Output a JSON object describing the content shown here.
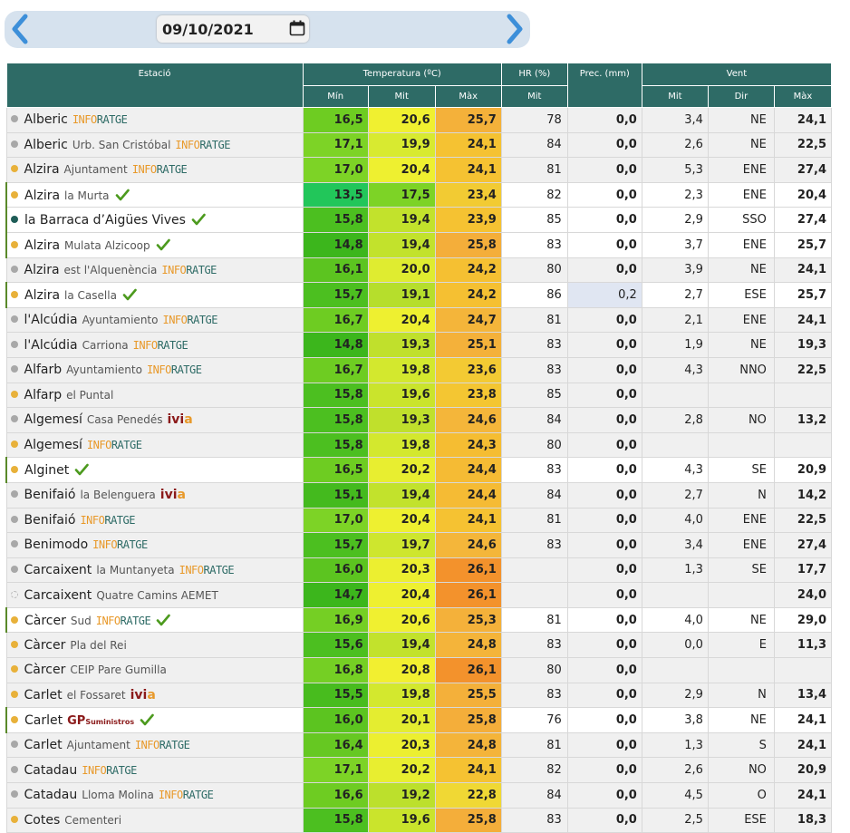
{
  "date": "09/10/2021",
  "icons": {
    "prev": "chevron-left-icon",
    "next": "chevron-right-icon",
    "calendar": "calendar-icon",
    "check": "checkmark-icon"
  },
  "headers": {
    "estacio": "Estació",
    "temperatura": "Temperatura (ºC)",
    "hr": "HR (%)",
    "prec": "Prec. (mm)",
    "vent": "Vent",
    "min": "Mín",
    "mit": "Mit",
    "max": "Màx",
    "hr_mit": "Mit",
    "vent_mit": "Mit",
    "vent_dir": "Dir",
    "vent_max": "Màx"
  },
  "colors": {
    "header_bg": "#2e6b66",
    "dot_orange": "#e8b13a",
    "dot_gray": "#a8a8a8",
    "dot_teal": "#1f5d57",
    "check_green": "#4c9a1e"
  },
  "rows": [
    {
      "name": "Alberic",
      "sub": "",
      "logo": "inforatge",
      "check": false,
      "dot": "gray",
      "hl": false,
      "min": "16,5",
      "mit": "20,6",
      "max": "25,7",
      "hr": "78",
      "prec": "0,0",
      "vmit": "3,4",
      "vdir": "NE",
      "vmax": "24,1",
      "cmin": "#6ecc22",
      "cmit": "#f0f030",
      "cmax": "#f4b13a"
    },
    {
      "name": "Alberic",
      "sub": "Urb. San Cristóbal",
      "logo": "inforatge",
      "check": false,
      "dot": "gray",
      "hl": false,
      "min": "17,1",
      "mit": "19,9",
      "max": "24,1",
      "hr": "84",
      "prec": "0,0",
      "vmit": "2,6",
      "vdir": "NE",
      "vmax": "22,5",
      "cmin": "#7dd326",
      "cmit": "#d8ea30",
      "cmax": "#f5c232"
    },
    {
      "name": "Alzira",
      "sub": "Ajuntament",
      "logo": "inforatge",
      "check": false,
      "dot": "orange",
      "hl": false,
      "min": "17,0",
      "mit": "20,4",
      "max": "24,1",
      "hr": "81",
      "prec": "0,0",
      "vmit": "5,3",
      "vdir": "ENE",
      "vmax": "27,4",
      "cmin": "#7dd326",
      "cmit": "#eef030",
      "cmax": "#f5c232"
    },
    {
      "name": "Alzira",
      "sub": "la Murta",
      "logo": "",
      "check": true,
      "dot": "orange",
      "hl": true,
      "min": "13,5",
      "mit": "17,5",
      "max": "23,4",
      "hr": "82",
      "prec": "0,0",
      "vmit": "2,3",
      "vdir": "ENE",
      "vmax": "20,4",
      "cmin": "#22c65a",
      "cmit": "#7dd326",
      "cmax": "#f2cb33"
    },
    {
      "name": "la Barraca d’Aigües Vives",
      "sub": "",
      "logo": "",
      "check": true,
      "dot": "teal",
      "hl": true,
      "min": "15,8",
      "mit": "19,4",
      "max": "23,9",
      "hr": "85",
      "prec": "0,0",
      "vmit": "2,9",
      "vdir": "SSO",
      "vmax": "27,4",
      "cmin": "#4cbf20",
      "cmit": "#c2e22c",
      "cmax": "#f5c232"
    },
    {
      "name": "Alzira",
      "sub": "Mulata Alzicoop",
      "logo": "",
      "check": true,
      "dot": "orange",
      "hl": true,
      "min": "14,8",
      "mit": "19,4",
      "max": "25,8",
      "hr": "83",
      "prec": "0,0",
      "vmit": "3,7",
      "vdir": "ENE",
      "vmax": "25,7",
      "cmin": "#3cb61c",
      "cmit": "#c2e22c",
      "cmax": "#f4ae3a"
    },
    {
      "name": "Alzira",
      "sub": "est l'Alquenència",
      "logo": "inforatge",
      "check": false,
      "dot": "gray",
      "hl": false,
      "min": "16,1",
      "mit": "20,0",
      "max": "24,2",
      "hr": "80",
      "prec": "0,0",
      "vmit": "3,9",
      "vdir": "NE",
      "vmax": "24,1",
      "cmin": "#5cc420",
      "cmit": "#dfec30",
      "cmax": "#f5c032"
    },
    {
      "name": "Alzira",
      "sub": "la Casella",
      "logo": "",
      "check": true,
      "dot": "orange",
      "hl": true,
      "min": "15,7",
      "mit": "19,1",
      "max": "24,2",
      "hr": "86",
      "prec": "0,2",
      "vmit": "2,7",
      "vdir": "ESE",
      "vmax": "25,7",
      "cmin": "#4cbf20",
      "cmit": "#b6de2c",
      "cmax": "#f5c032"
    },
    {
      "name": "l'Alcúdia",
      "sub": "Ayuntamiento",
      "logo": "inforatge",
      "check": false,
      "dot": "gray",
      "hl": false,
      "min": "16,7",
      "mit": "20,4",
      "max": "24,7",
      "hr": "81",
      "prec": "0,0",
      "vmit": "2,1",
      "vdir": "ENE",
      "vmax": "24,1",
      "cmin": "#6ecc22",
      "cmit": "#eef030",
      "cmax": "#f4b53a"
    },
    {
      "name": "l'Alcúdia",
      "sub": "Carriona",
      "logo": "inforatge",
      "check": false,
      "dot": "gray",
      "hl": false,
      "min": "14,8",
      "mit": "19,3",
      "max": "25,1",
      "hr": "83",
      "prec": "0,0",
      "vmit": "1,9",
      "vdir": "NE",
      "vmax": "19,3",
      "cmin": "#3cb61c",
      "cmit": "#c0e02c",
      "cmax": "#f4b13a"
    },
    {
      "name": "Alfarb",
      "sub": "Ayuntamiento",
      "logo": "inforatge",
      "check": false,
      "dot": "gray",
      "hl": false,
      "min": "16,7",
      "mit": "19,8",
      "max": "23,6",
      "hr": "83",
      "prec": "0,0",
      "vmit": "4,3",
      "vdir": "NNO",
      "vmax": "22,5",
      "cmin": "#6ecc22",
      "cmit": "#d3e82e",
      "cmax": "#f3ca33"
    },
    {
      "name": "Alfarp",
      "sub": "el Puntal",
      "logo": "",
      "check": false,
      "dot": "orange",
      "hl": false,
      "min": "15,8",
      "mit": "19,6",
      "max": "23,8",
      "hr": "85",
      "prec": "0,0",
      "vmit": "",
      "vdir": "",
      "vmax": "",
      "cmin": "#4cbf20",
      "cmit": "#cae42c",
      "cmax": "#f4c632"
    },
    {
      "name": "Algemesí",
      "sub": "Casa Penedés",
      "logo": "ivia",
      "check": false,
      "dot": "gray",
      "hl": false,
      "min": "15,8",
      "mit": "19,3",
      "max": "24,6",
      "hr": "84",
      "prec": "0,0",
      "vmit": "2,8",
      "vdir": "NO",
      "vmax": "13,2",
      "cmin": "#4cbf20",
      "cmit": "#c0e02c",
      "cmax": "#f4b63a"
    },
    {
      "name": "Algemesí",
      "sub": "",
      "logo": "inforatge",
      "check": false,
      "dot": "orange",
      "hl": false,
      "min": "15,8",
      "mit": "19,8",
      "max": "24,3",
      "hr": "80",
      "prec": "0,0",
      "vmit": "",
      "vdir": "",
      "vmax": "",
      "cmin": "#4cbf20",
      "cmit": "#d3e82e",
      "cmax": "#f5bd32"
    },
    {
      "name": "Alginet",
      "sub": "",
      "logo": "",
      "check": true,
      "dot": "orange",
      "hl": true,
      "min": "16,5",
      "mit": "20,2",
      "max": "24,4",
      "hr": "83",
      "prec": "0,0",
      "vmit": "4,3",
      "vdir": "SE",
      "vmax": "20,9",
      "cmin": "#6ecc22",
      "cmit": "#e8ee30",
      "cmax": "#f5bb34"
    },
    {
      "name": "Benifaió",
      "sub": "la Belenguera",
      "logo": "ivia",
      "check": false,
      "dot": "gray",
      "hl": false,
      "min": "15,1",
      "mit": "19,4",
      "max": "24,4",
      "hr": "84",
      "prec": "0,0",
      "vmit": "2,7",
      "vdir": "N",
      "vmax": "14,2",
      "cmin": "#44ba1e",
      "cmit": "#c2e22c",
      "cmax": "#f5bb34"
    },
    {
      "name": "Benifaió",
      "sub": "",
      "logo": "inforatge",
      "check": false,
      "dot": "gray",
      "hl": false,
      "min": "17,0",
      "mit": "20,4",
      "max": "24,1",
      "hr": "81",
      "prec": "0,0",
      "vmit": "4,0",
      "vdir": "ENE",
      "vmax": "22,5",
      "cmin": "#7dd326",
      "cmit": "#eef030",
      "cmax": "#f5c232"
    },
    {
      "name": "Benimodo",
      "sub": "",
      "logo": "inforatge",
      "check": false,
      "dot": "gray",
      "hl": false,
      "min": "15,7",
      "mit": "19,7",
      "max": "24,6",
      "hr": "83",
      "prec": "0,0",
      "vmit": "3,4",
      "vdir": "ENE",
      "vmax": "27,4",
      "cmin": "#4cbf20",
      "cmit": "#cee62e",
      "cmax": "#f4b63a"
    },
    {
      "name": "Carcaixent",
      "sub": "la Muntanyeta",
      "logo": "inforatge",
      "check": false,
      "dot": "gray",
      "hl": false,
      "min": "16,0",
      "mit": "20,3",
      "max": "26,1",
      "hr": "",
      "prec": "0,0",
      "vmit": "1,3",
      "vdir": "SE",
      "vmax": "17,7",
      "cmin": "#5cc420",
      "cmit": "#ecef30",
      "cmax": "#f3922c"
    },
    {
      "name": "Carcaixent",
      "sub": "Quatre Camins AEMET",
      "logo": "",
      "check": false,
      "dot": "empty",
      "hl": false,
      "min": "14,7",
      "mit": "20,4",
      "max": "26,1",
      "hr": "",
      "prec": "0,0",
      "vmit": "",
      "vdir": "",
      "vmax": "24,0",
      "cmin": "#3cb61c",
      "cmit": "#eef030",
      "cmax": "#f3922c"
    },
    {
      "name": "Càrcer",
      "sub": "Sud",
      "logo": "inforatge",
      "check": true,
      "dot": "orange",
      "hl": true,
      "min": "16,9",
      "mit": "20,6",
      "max": "25,3",
      "hr": "81",
      "prec": "0,0",
      "vmit": "4,0",
      "vdir": "NE",
      "vmax": "29,0",
      "cmin": "#75cf24",
      "cmit": "#f0f030",
      "cmax": "#f4b13a"
    },
    {
      "name": "Càrcer",
      "sub": "Pla del Rei",
      "logo": "",
      "check": false,
      "dot": "orange",
      "hl": false,
      "min": "15,6",
      "mit": "19,4",
      "max": "24,8",
      "hr": "83",
      "prec": "0,0",
      "vmit": "0,0",
      "vdir": "E",
      "vmax": "11,3",
      "cmin": "#4cbf20",
      "cmit": "#c2e22c",
      "cmax": "#f4b43a"
    },
    {
      "name": "Càrcer",
      "sub": "CEIP Pare Gumilla",
      "logo": "",
      "check": false,
      "dot": "orange",
      "hl": false,
      "min": "16,8",
      "mit": "20,8",
      "max": "26,1",
      "hr": "80",
      "prec": "0,0",
      "vmit": "",
      "vdir": "",
      "vmax": "",
      "cmin": "#75cf24",
      "cmit": "#f2ef30",
      "cmax": "#f3922c"
    },
    {
      "name": "Carlet",
      "sub": "el Fossaret",
      "logo": "ivia",
      "check": false,
      "dot": "orange",
      "hl": false,
      "min": "15,5",
      "mit": "19,8",
      "max": "25,5",
      "hr": "83",
      "prec": "0,0",
      "vmit": "2,9",
      "vdir": "N",
      "vmax": "13,4",
      "cmin": "#48bc1e",
      "cmit": "#d3e82e",
      "cmax": "#f4b03a"
    },
    {
      "name": "Carlet",
      "sub": "",
      "logo": "gp",
      "check": true,
      "dot": "orange",
      "hl": true,
      "min": "16,0",
      "mit": "20,1",
      "max": "25,8",
      "hr": "76",
      "prec": "0,0",
      "vmit": "3,8",
      "vdir": "NE",
      "vmax": "24,1",
      "cmin": "#5cc420",
      "cmit": "#e4ed30",
      "cmax": "#f4ae3a"
    },
    {
      "name": "Carlet",
      "sub": "Ajuntament",
      "logo": "inforatge",
      "check": false,
      "dot": "gray",
      "hl": false,
      "min": "16,4",
      "mit": "20,3",
      "max": "24,8",
      "hr": "81",
      "prec": "0,0",
      "vmit": "1,3",
      "vdir": "S",
      "vmax": "24,1",
      "cmin": "#66c822",
      "cmit": "#ecef30",
      "cmax": "#f4b43a"
    },
    {
      "name": "Catadau",
      "sub": "",
      "logo": "inforatge",
      "check": false,
      "dot": "gray",
      "hl": false,
      "min": "17,1",
      "mit": "20,2",
      "max": "24,1",
      "hr": "82",
      "prec": "0,0",
      "vmit": "2,6",
      "vdir": "NO",
      "vmax": "20,9",
      "cmin": "#7dd326",
      "cmit": "#e8ee30",
      "cmax": "#f5c232"
    },
    {
      "name": "Catadau",
      "sub": "Lloma Molina",
      "logo": "inforatge",
      "check": false,
      "dot": "gray",
      "hl": false,
      "min": "16,6",
      "mit": "19,2",
      "max": "22,8",
      "hr": "84",
      "prec": "0,0",
      "vmit": "4,5",
      "vdir": "O",
      "vmax": "24,1",
      "cmin": "#6ecc22",
      "cmit": "#bce02c",
      "cmax": "#f0d834"
    },
    {
      "name": "Cotes",
      "sub": "Cementeri",
      "logo": "",
      "check": false,
      "dot": "orange",
      "hl": false,
      "min": "15,8",
      "mit": "19,6",
      "max": "25,8",
      "hr": "83",
      "prec": "0,0",
      "vmit": "2,5",
      "vdir": "ESE",
      "vmax": "18,3",
      "cmin": "#4cbf20",
      "cmit": "#cae42c",
      "cmax": "#f4ae3a"
    }
  ]
}
